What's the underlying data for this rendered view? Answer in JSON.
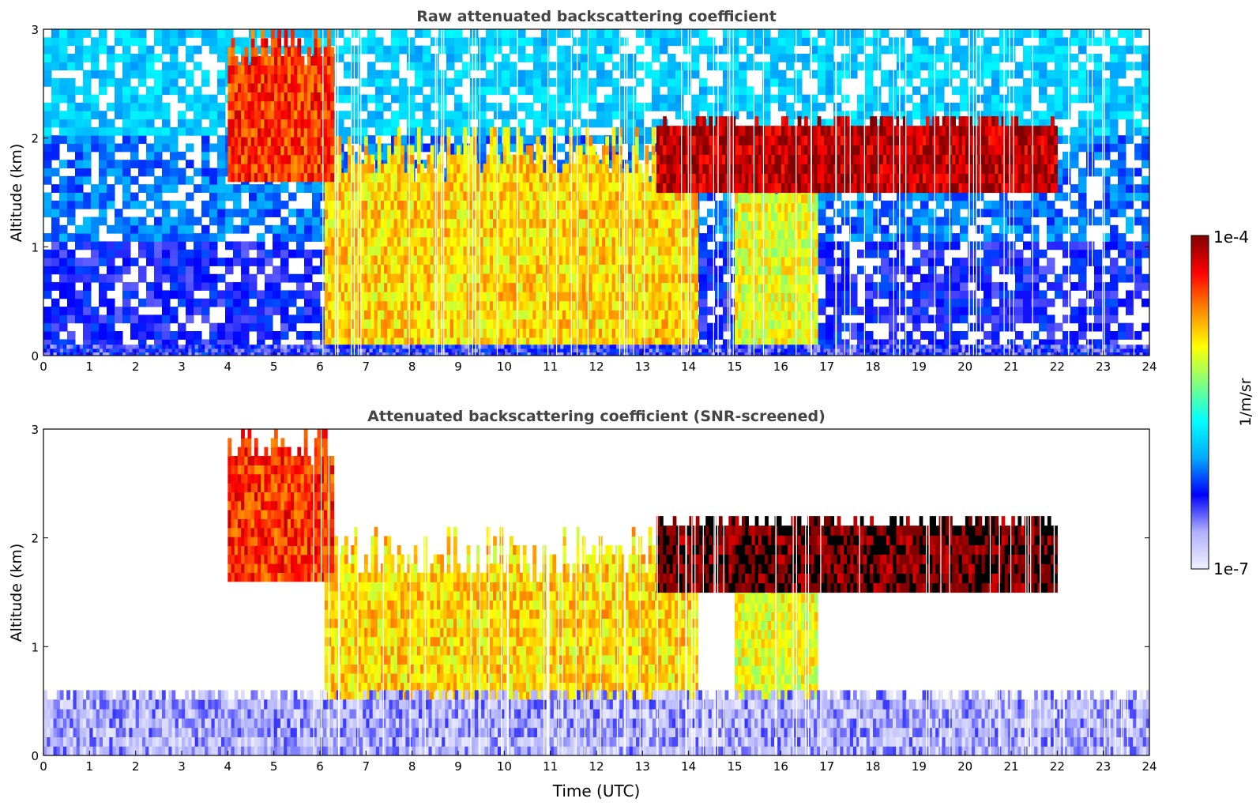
{
  "chart_data": [
    {
      "type": "heatmap",
      "title": "Raw attenuated backscattering coefficient",
      "xlabel": "",
      "ylabel": "Altitude (km)",
      "xlim": [
        0,
        24
      ],
      "ylim": [
        0,
        3
      ],
      "xticks": [
        0,
        1,
        2,
        3,
        4,
        5,
        6,
        7,
        8,
        9,
        10,
        11,
        12,
        13,
        14,
        15,
        16,
        17,
        18,
        19,
        20,
        21,
        22,
        23,
        24
      ],
      "yticks": [
        0,
        1,
        2,
        3
      ],
      "regions": [
        {
          "name": "cloud-body-morning",
          "x": [
            6.1,
            14.2
          ],
          "y": [
            0,
            2.1
          ],
          "level": 0.7
        },
        {
          "name": "cloud-body-afternoon",
          "x": [
            15.0,
            16.8
          ],
          "y": [
            0,
            1.9
          ],
          "level": 0.65
        },
        {
          "name": "virga-fall-streaks",
          "x": [
            4.0,
            6.3
          ],
          "y": [
            1.6,
            3.0
          ],
          "level": 0.85
        },
        {
          "name": "cloud-top-layer",
          "x": [
            13.3,
            22.0
          ],
          "y": [
            1.5,
            2.2
          ],
          "level": 0.95
        },
        {
          "name": "boundary-layer",
          "x": [
            0,
            24
          ],
          "y": [
            0,
            0.1
          ],
          "level": 0.2
        }
      ]
    },
    {
      "type": "heatmap",
      "title": "Attenuated backscattering coefficient (SNR-screened)",
      "xlabel": "Time (UTC)",
      "ylabel": "Altitude (km)",
      "xlim": [
        0,
        24
      ],
      "ylim": [
        0,
        3
      ],
      "xticks": [
        0,
        1,
        2,
        3,
        4,
        5,
        6,
        7,
        8,
        9,
        10,
        11,
        12,
        13,
        14,
        15,
        16,
        17,
        18,
        19,
        20,
        21,
        22,
        23,
        24
      ],
      "yticks": [
        0,
        1,
        2,
        3
      ],
      "regions": [
        {
          "name": "cloud-body-morning",
          "x": [
            6.1,
            14.2
          ],
          "y": [
            0,
            2.1
          ],
          "level": 0.7
        },
        {
          "name": "cloud-body-afternoon",
          "x": [
            15.0,
            16.8
          ],
          "y": [
            0,
            1.9
          ],
          "level": 0.65
        },
        {
          "name": "virga-fall-streaks",
          "x": [
            4.0,
            6.3
          ],
          "y": [
            1.6,
            3.0
          ],
          "level": 0.85
        },
        {
          "name": "cloud-top-layer",
          "x": [
            13.3,
            22.0
          ],
          "y": [
            1.5,
            2.2
          ],
          "level": 1.0
        },
        {
          "name": "boundary-layer",
          "x": [
            0,
            24
          ],
          "y": [
            0,
            0.6
          ],
          "level": 0.1
        }
      ]
    }
  ],
  "colorbar": {
    "label": "1/m/sr",
    "max_label": "1e-4",
    "min_label": "1e-7",
    "colormap": "jet",
    "colors": [
      "#f0f0ff",
      "#b0b0ff",
      "#0000ff",
      "#00aaff",
      "#00ffff",
      "#7fff7f",
      "#ffff00",
      "#ff8800",
      "#ff0000",
      "#800000"
    ]
  }
}
